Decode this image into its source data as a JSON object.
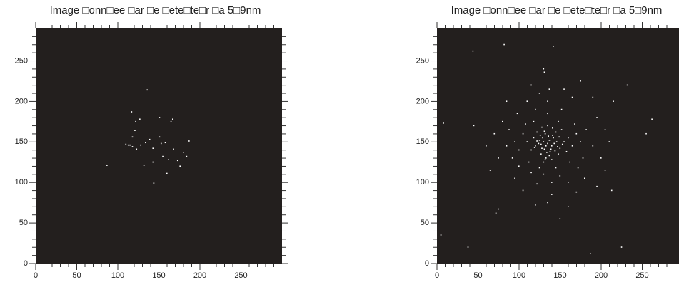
{
  "chart_data": [
    {
      "type": "scatter",
      "title": "Image □onn□ee □ar □e □ete□te□r □a 5□9nm",
      "x": [
        136,
        117,
        87,
        122,
        127,
        151,
        167,
        165,
        113,
        118,
        123,
        128,
        134,
        143,
        151,
        158,
        168,
        180,
        184,
        187,
        155,
        162,
        173,
        160,
        176,
        143,
        144,
        132,
        153,
        139,
        121,
        118,
        110,
        115
      ],
      "y": [
        214,
        187,
        121,
        175,
        178,
        180,
        178,
        175,
        146,
        144,
        141,
        146,
        149,
        142,
        156,
        149,
        141,
        137,
        132,
        151,
        132,
        128,
        127,
        111,
        120,
        125,
        99,
        121,
        148,
        153,
        164,
        156,
        147,
        146
      ],
      "xlim": [
        0,
        300
      ],
      "ylim": [
        0,
        290
      ],
      "xticks": [
        0,
        50,
        100,
        150,
        200,
        250
      ],
      "yticks": [
        0,
        50,
        100,
        150,
        200,
        250
      ],
      "minor_xticks": [
        10,
        20,
        30,
        40,
        60,
        70,
        80,
        90,
        110,
        120,
        130,
        140,
        160,
        170,
        180,
        190,
        210,
        220,
        230,
        240,
        260,
        270,
        280,
        290
      ],
      "minor_yticks": [
        10,
        20,
        30,
        40,
        60,
        70,
        80,
        90,
        110,
        120,
        130,
        140,
        160,
        170,
        180,
        190,
        210,
        220,
        230,
        240,
        260,
        270,
        280
      ],
      "background": "#231f1e",
      "color": "#ffffff"
    },
    {
      "type": "scatter",
      "title": "Image □onn□ee □ar □e □ete□te□r □a 5□9nm",
      "x": [
        135,
        130,
        140,
        128,
        142,
        125,
        138,
        146,
        132,
        120,
        150,
        137,
        127,
        145,
        118,
        155,
        133,
        141,
        124,
        148,
        110,
        160,
        135,
        130,
        115,
        152,
        122,
        158,
        140,
        128,
        105,
        165,
        100,
        170,
        112,
        148,
        118,
        162,
        145,
        125,
        95,
        175,
        135,
        108,
        168,
        92,
        178,
        130,
        150,
        115,
        88,
        182,
        120,
        152,
        100,
        172,
        140,
        122,
        160,
        85,
        190,
        135,
        80,
        195,
        110,
        165,
        95,
        180,
        140,
        75,
        200,
        125,
        155,
        70,
        205,
        105,
        170,
        60,
        210,
        135,
        98,
        137,
        115,
        175,
        85,
        190,
        65,
        205,
        120,
        160,
        44,
        82,
        142,
        8,
        5,
        38,
        187,
        225,
        72,
        75,
        213,
        262,
        232,
        150,
        195,
        130,
        131,
        45,
        255,
        215,
        133,
        138,
        131,
        143,
        127,
        136,
        139,
        129,
        147,
        134,
        126,
        144,
        122,
        149,
        137,
        131,
        153,
        119,
        141,
        132
      ],
      "y": [
        148,
        150,
        145,
        142,
        155,
        152,
        138,
        150,
        160,
        145,
        142,
        152,
        135,
        162,
        155,
        150,
        130,
        158,
        148,
        135,
        150,
        155,
        170,
        125,
        140,
        165,
        162,
        138,
        128,
        168,
        160,
        145,
        140,
        160,
        125,
        175,
        175,
        125,
        118,
        118,
        150,
        150,
        185,
        172,
        172,
        130,
        130,
        110,
        108,
        112,
        165,
        165,
        190,
        190,
        120,
        118,
        100,
        98,
        100,
        145,
        145,
        200,
        175,
        180,
        200,
        205,
        105,
        105,
        85,
        130,
        130,
        210,
        215,
        160,
        165,
        90,
        88,
        145,
        150,
        75,
        185,
        215,
        220,
        225,
        200,
        205,
        115,
        115,
        72,
        70,
        262,
        270,
        268,
        173,
        35,
        20,
        12,
        20,
        62,
        67,
        90,
        178,
        220,
        55,
        95,
        240,
        236,
        170,
        160,
        200,
        145,
        152,
        141,
        148,
        147,
        157,
        141,
        155,
        144,
        137,
        158,
        139,
        151,
        156,
        133,
        163,
        147,
        143,
        167,
        128
      ],
      "xlim": [
        0,
        300
      ],
      "ylim": [
        0,
        290
      ],
      "xticks": [
        0,
        50,
        100,
        150,
        200,
        250
      ],
      "yticks": [
        0,
        50,
        100,
        150,
        200,
        250
      ],
      "minor_xticks": [
        10,
        20,
        30,
        40,
        60,
        70,
        80,
        90,
        110,
        120,
        130,
        140,
        160,
        170,
        180,
        190,
        210,
        220,
        230,
        240,
        260,
        270,
        280,
        290
      ],
      "minor_yticks": [
        10,
        20,
        30,
        40,
        60,
        70,
        80,
        90,
        110,
        120,
        130,
        140,
        160,
        170,
        180,
        190,
        210,
        220,
        230,
        240,
        260,
        270,
        280
      ],
      "background": "#231f1e",
      "color": "#ffffff"
    }
  ]
}
